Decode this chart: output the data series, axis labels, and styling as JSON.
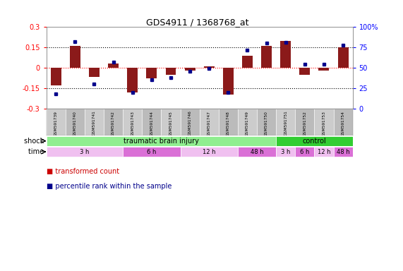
{
  "title": "GDS4911 / 1368768_at",
  "samples": [
    "GSM591739",
    "GSM591740",
    "GSM591741",
    "GSM591742",
    "GSM591743",
    "GSM591744",
    "GSM591745",
    "GSM591746",
    "GSM591747",
    "GSM591748",
    "GSM591749",
    "GSM591750",
    "GSM591751",
    "GSM591752",
    "GSM591753",
    "GSM591754"
  ],
  "transformed_count": [
    -0.13,
    0.16,
    -0.07,
    0.03,
    -0.18,
    -0.08,
    -0.05,
    -0.02,
    0.01,
    -0.2,
    0.09,
    0.16,
    0.2,
    -0.05,
    -0.02,
    0.15
  ],
  "percentile_rank": [
    18,
    82,
    30,
    57,
    20,
    35,
    38,
    46,
    49,
    20,
    72,
    80,
    81,
    54,
    54,
    78
  ],
  "ylim_left": [
    -0.3,
    0.3
  ],
  "ylim_right": [
    0,
    100
  ],
  "yticks_left": [
    -0.3,
    -0.15,
    0,
    0.15,
    0.3
  ],
  "yticks_right": [
    0,
    25,
    50,
    75,
    100
  ],
  "ytick_labels_left": [
    "-0.3",
    "-0.15",
    "0",
    "0.15",
    "0.3"
  ],
  "ytick_labels_right": [
    "0",
    "25",
    "50",
    "75",
    "100%"
  ],
  "bar_color": "#8B1A1A",
  "dot_color": "#00008B",
  "shock_groups": [
    {
      "label": "traumatic brain injury",
      "start": 0,
      "end": 12,
      "color": "#90EE90"
    },
    {
      "label": "control",
      "start": 12,
      "end": 16,
      "color": "#32CD32"
    }
  ],
  "time_groups": [
    {
      "label": "3 h",
      "start": 0,
      "end": 4,
      "color": "#F0C0F0"
    },
    {
      "label": "6 h",
      "start": 4,
      "end": 7,
      "color": "#DA70D6"
    },
    {
      "label": "12 h",
      "start": 7,
      "end": 10,
      "color": "#F0C0F0"
    },
    {
      "label": "48 h",
      "start": 10,
      "end": 12,
      "color": "#DA70D6"
    },
    {
      "label": "3 h",
      "start": 12,
      "end": 13,
      "color": "#F0C0F0"
    },
    {
      "label": "6 h",
      "start": 13,
      "end": 14,
      "color": "#DA70D6"
    },
    {
      "label": "12 h",
      "start": 14,
      "end": 15,
      "color": "#F0C0F0"
    },
    {
      "label": "48 h",
      "start": 15,
      "end": 16,
      "color": "#DA70D6"
    }
  ],
  "legend_items": [
    {
      "label": "transformed count",
      "color": "#CC0000"
    },
    {
      "label": "percentile rank within the sample",
      "color": "#00008B"
    }
  ],
  "shock_label": "shock",
  "time_label": "time",
  "sample_box_color": "#C8C8C8",
  "plot_bg": "#FFFFFF"
}
